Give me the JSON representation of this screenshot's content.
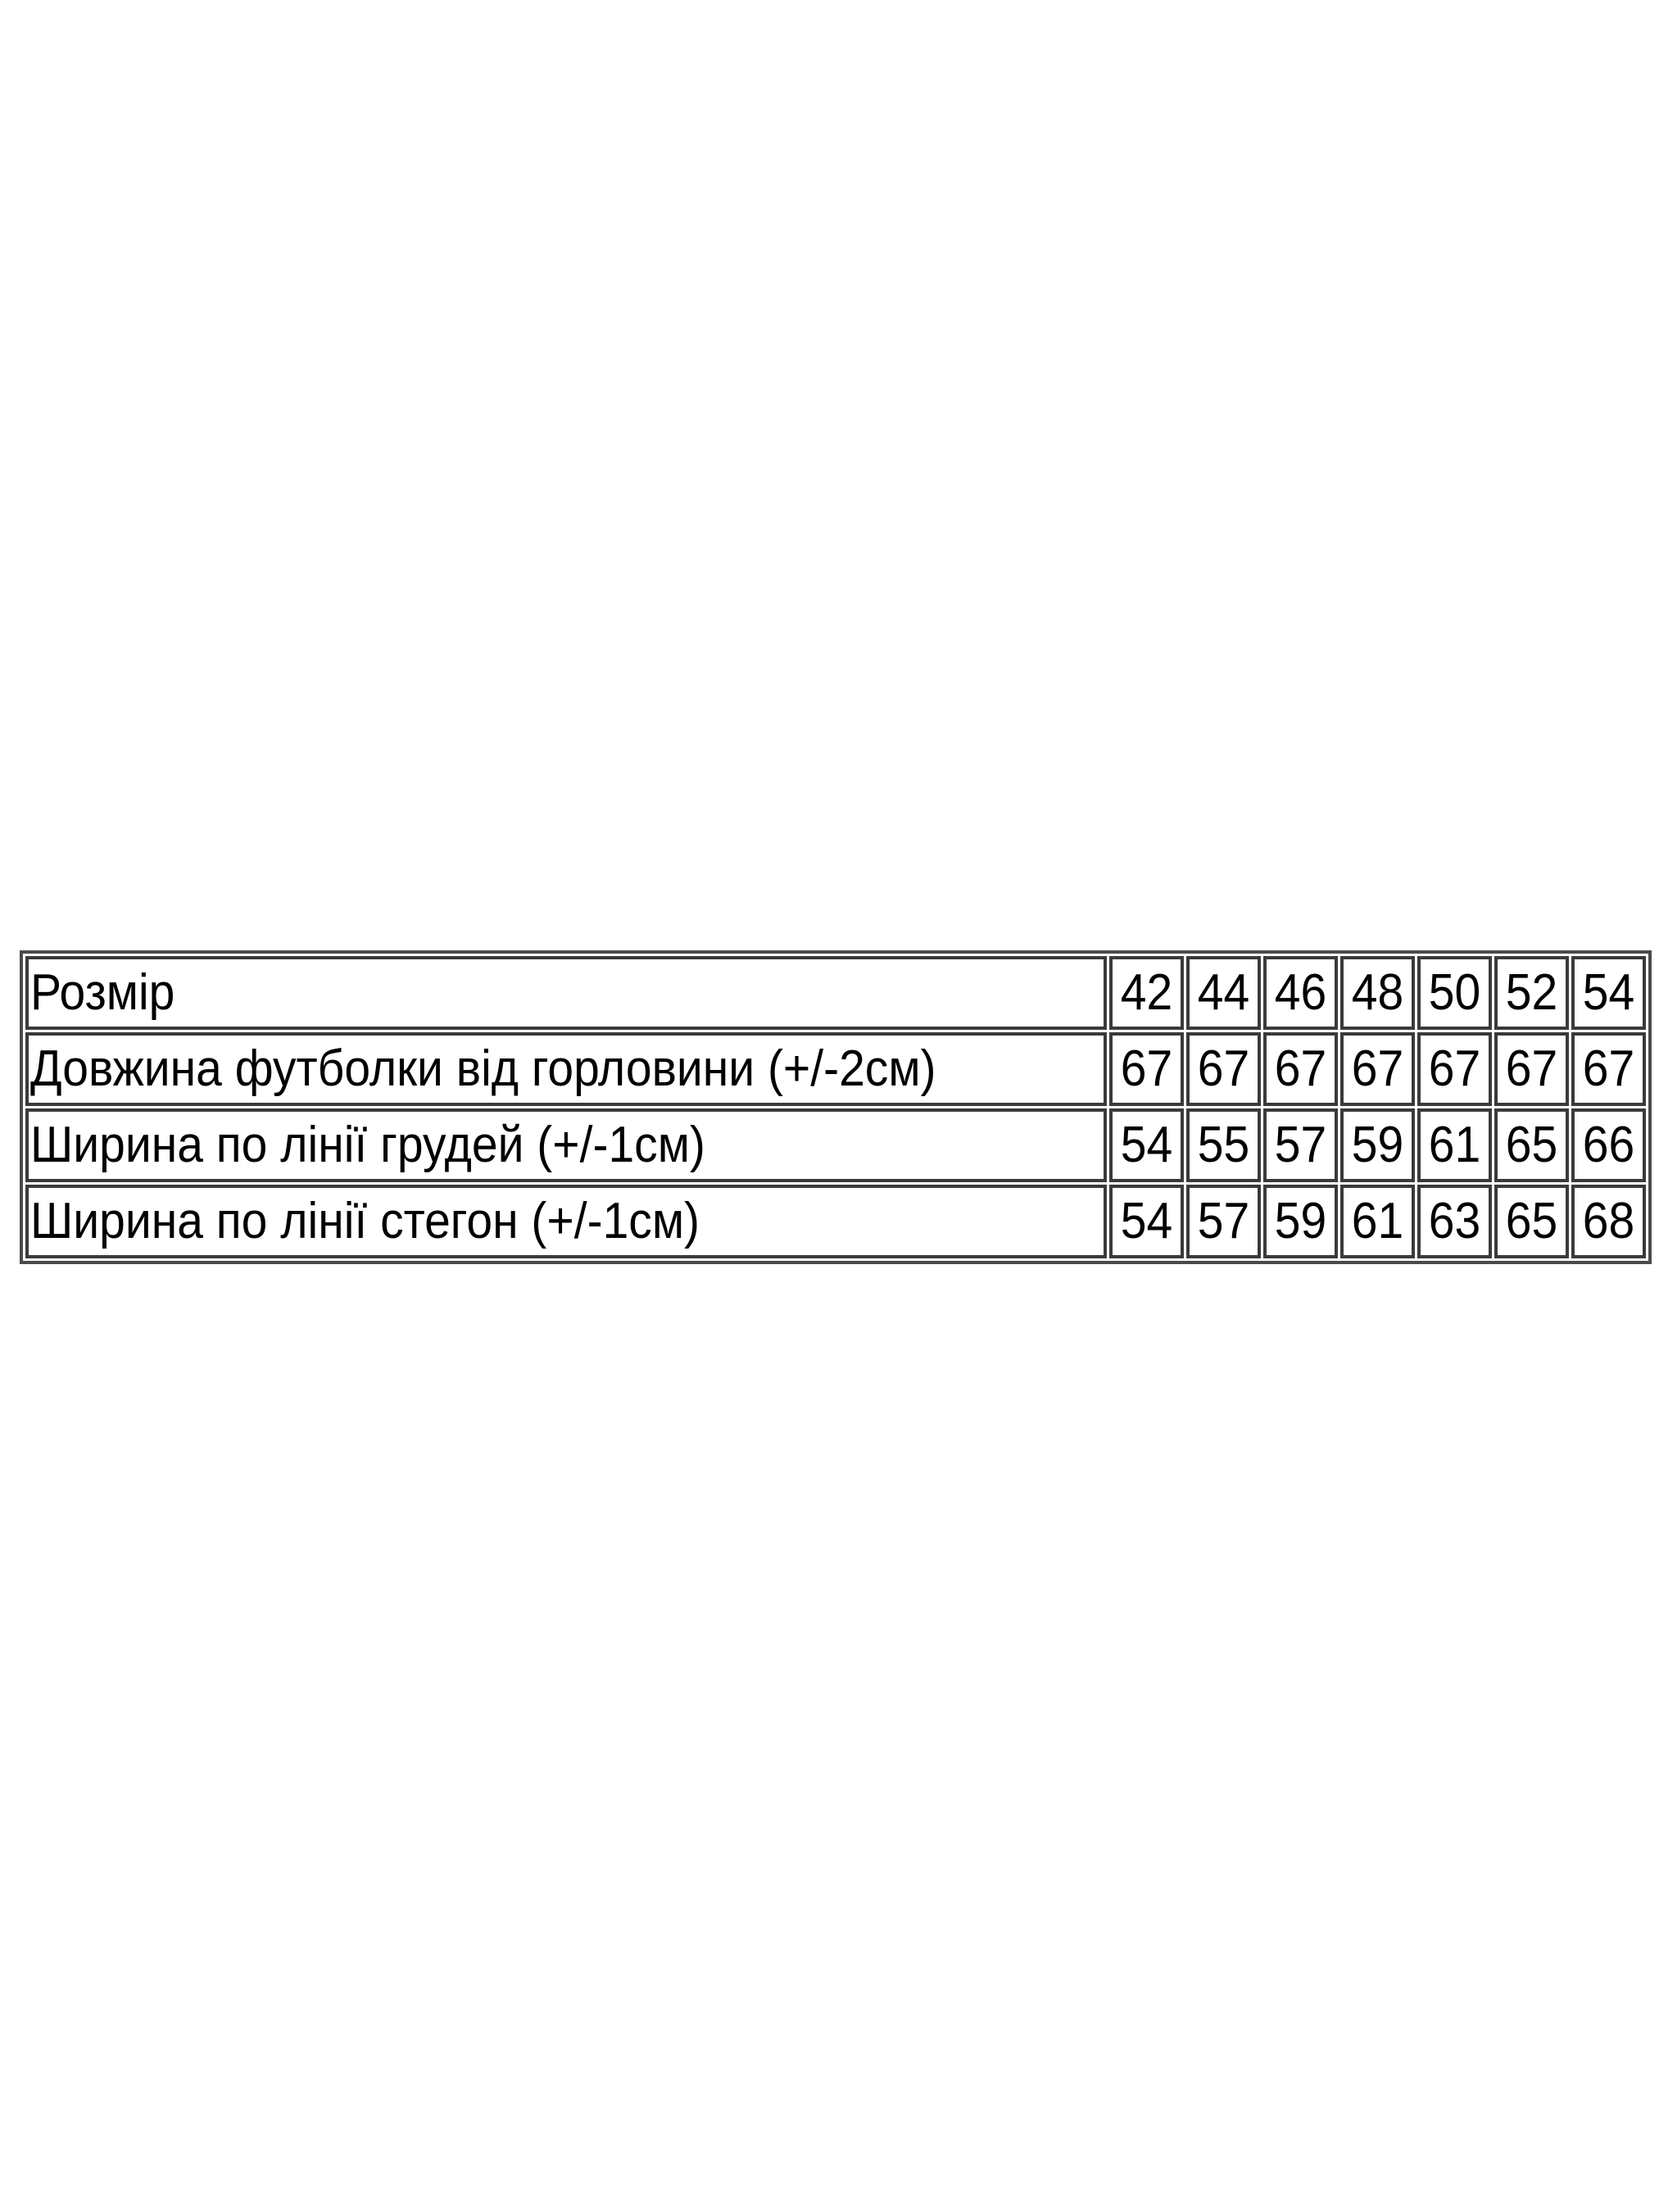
{
  "size_table": {
    "header": {
      "label": "Розмір",
      "sizes": [
        "42",
        "44",
        "46",
        "48",
        "50",
        "52",
        "54"
      ]
    },
    "rows": [
      {
        "label": "Довжина футболки від горловини (+/-2см)",
        "values": [
          "67",
          "67",
          "67",
          "67",
          "67",
          "67",
          "67"
        ]
      },
      {
        "label": "Ширина по лінії грудей (+/-1см)",
        "values": [
          "54",
          "55",
          "57",
          "59",
          "61",
          "65",
          "66"
        ]
      },
      {
        "label": "Ширина по лінії стегон (+/-1см)",
        "values": [
          "54",
          "57",
          "59",
          "61",
          "63",
          "65",
          "68"
        ]
      }
    ]
  }
}
